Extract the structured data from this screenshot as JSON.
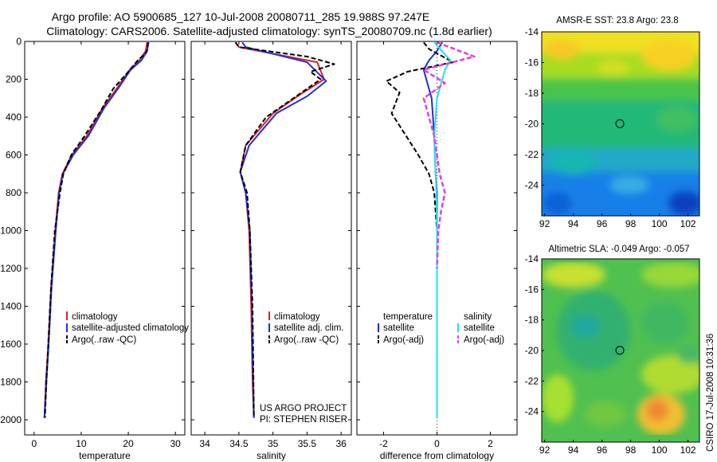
{
  "title": {
    "line1": "Argo profile: AO 5900685_127 10-Jul-2008 20080711_285 19.988S 97.247E",
    "line2": "Climatology: CARS2006. Satellite-adjusted climatology: synTS_20080709.nc (1.8d earlier)"
  },
  "credit": "CSIRO 17-Jul-2008 10:31:36",
  "project": {
    "line1": "US ARGO PROJECT",
    "line2": "PI: STEPHEN RISER"
  },
  "colors": {
    "climatology": "#e02020",
    "satellite": "#1e2ee0",
    "argo": "#000000",
    "sal_satellite": "#22e0f0",
    "sal_argo": "#e040e0"
  },
  "chart_data": [
    {
      "type": "line",
      "name": "temperature-profile",
      "xlabel": "temperature",
      "ylabel": "",
      "xlim": [
        -2,
        32
      ],
      "ylim": [
        2080,
        0
      ],
      "xticks": [
        0,
        10,
        20,
        30
      ],
      "yticks": [
        0,
        200,
        400,
        600,
        800,
        1000,
        1200,
        1400,
        1600,
        1800,
        2000
      ],
      "legend": {
        "location": "lower-right",
        "entries": [
          "climatology",
          "satellite-adjusted climatology",
          "Argo(..raw -QC)"
        ]
      },
      "series": [
        {
          "name": "climatology",
          "style": "solid",
          "x": [
            24.0,
            23.7,
            22.3,
            20.3,
            17.5,
            14.6,
            11.2,
            8.0,
            6.0,
            5.2,
            4.5,
            3.6,
            3.0,
            2.5,
            2.2
          ],
          "y": [
            5,
            50,
            100,
            150,
            250,
            350,
            500,
            600,
            700,
            800,
            1000,
            1300,
            1600,
            1800,
            1990
          ]
        },
        {
          "name": "satellite",
          "style": "solid",
          "x": [
            24.3,
            24.0,
            22.8,
            20.5,
            17.8,
            14.9,
            11.5,
            8.3,
            6.1,
            5.3,
            4.6,
            3.7,
            3.1,
            2.6,
            2.2
          ],
          "y": [
            5,
            50,
            100,
            150,
            250,
            350,
            500,
            600,
            700,
            800,
            1000,
            1300,
            1600,
            1800,
            1990
          ]
        },
        {
          "name": "Argo",
          "style": "dashed",
          "x": [
            24.2,
            23.8,
            22.0,
            20.0,
            16.8,
            14.3,
            10.7,
            7.9,
            6.2,
            5.5,
            4.4,
            3.6,
            3.0,
            2.6,
            2.3
          ],
          "y": [
            5,
            60,
            100,
            160,
            250,
            360,
            500,
            600,
            700,
            800,
            1000,
            1300,
            1600,
            1800,
            1990
          ]
        }
      ]
    },
    {
      "type": "line",
      "name": "salinity-profile",
      "xlabel": "salinity",
      "xlim": [
        33.8,
        36.15
      ],
      "ylim": [
        2080,
        0
      ],
      "xticks": [
        34,
        34.5,
        35,
        35.5,
        36
      ],
      "legend": {
        "location": "lower-right",
        "entries": [
          "climatology",
          "satellite adj. clim.",
          "Argo(..raw -QC)"
        ]
      },
      "series": [
        {
          "name": "climatology",
          "style": "solid",
          "x": [
            34.45,
            34.5,
            35.65,
            35.75,
            35.4,
            35.0,
            34.6,
            34.52,
            34.6,
            34.65,
            34.68,
            34.7,
            34.72
          ],
          "y": [
            5,
            30,
            110,
            200,
            280,
            380,
            550,
            690,
            800,
            1000,
            1400,
            1800,
            1990
          ]
        },
        {
          "name": "satellite",
          "style": "solid",
          "x": [
            34.55,
            34.6,
            35.5,
            35.78,
            35.5,
            35.05,
            34.65,
            34.52,
            34.6,
            34.66,
            34.69,
            34.71,
            34.72
          ],
          "y": [
            5,
            30,
            110,
            210,
            290,
            380,
            550,
            690,
            800,
            1000,
            1400,
            1800,
            1990
          ]
        },
        {
          "name": "Argo",
          "style": "dashed",
          "x": [
            34.45,
            34.5,
            35.5,
            35.9,
            35.55,
            35.7,
            35.3,
            34.9,
            34.6,
            34.52,
            34.62,
            34.66,
            34.7,
            34.72
          ],
          "y": [
            5,
            30,
            80,
            120,
            160,
            200,
            300,
            400,
            550,
            690,
            800,
            1000,
            1400,
            1990
          ]
        }
      ]
    },
    {
      "type": "line",
      "name": "difference-profile",
      "xlabel": "difference from climatology",
      "xlim": [
        -3,
        3
      ],
      "ylim": [
        2080,
        0
      ],
      "xticks": [
        -2,
        0,
        2
      ],
      "legend": {
        "location": "lower-center",
        "headers": [
          "temperature",
          "salinity"
        ],
        "entries": [
          "satellite",
          "Argo(-adj)",
          "satellite",
          "Argo(-adj)"
        ]
      },
      "series": [
        {
          "name": "temperature satellite",
          "style": "solid",
          "x": [
            0.2,
            0.0,
            -0.3,
            -0.5,
            -0.4,
            -0.2,
            -0.1,
            -0.05,
            0.0,
            0.0,
            0.0,
            0.0,
            0.0
          ],
          "y": [
            5,
            50,
            100,
            150,
            200,
            300,
            500,
            700,
            800,
            1000,
            1400,
            1800,
            1990
          ]
        },
        {
          "name": "temperature Argo(-adj)",
          "style": "dashed",
          "x": [
            -0.5,
            -0.3,
            0.6,
            -1.1,
            -1.9,
            -1.4,
            -1.7,
            -0.7,
            -0.3,
            -0.1,
            0.0,
            0.0,
            0.0,
            0.0
          ],
          "y": [
            5,
            40,
            110,
            160,
            210,
            270,
            380,
            600,
            700,
            800,
            1000,
            1400,
            1800,
            1990
          ]
        },
        {
          "name": "salinity satellite",
          "style": "solid",
          "x": [
            -0.1,
            0.5,
            0.3,
            0.0,
            -0.1,
            -0.05,
            -0.02,
            0.0,
            0.0,
            0.0,
            0.0
          ],
          "y": [
            5,
            100,
            150,
            300,
            500,
            700,
            800,
            1000,
            1400,
            1800,
            1990
          ]
        },
        {
          "name": "salinity Argo(-adj)",
          "style": "dashed",
          "x": [
            0.0,
            1.4,
            -0.5,
            0.3,
            -0.5,
            -0.1,
            0.1,
            0.3,
            0.15,
            0.05,
            0.0
          ],
          "y": [
            5,
            80,
            150,
            220,
            300,
            500,
            700,
            800,
            900,
            1000,
            1200
          ]
        }
      ]
    },
    {
      "type": "heatmap",
      "name": "amsr-e-sst-map",
      "title": "AMSR-E SST: 23.8 Argo: 23.8",
      "xlim": [
        91.8,
        102.8
      ],
      "ylim": [
        -26,
        -14
      ],
      "xticks": [
        92,
        94,
        96,
        98,
        100,
        102
      ],
      "yticks": [
        -14,
        -16,
        -18,
        -20,
        -22,
        -24
      ],
      "marker": {
        "lon": 97.247,
        "lat": -19.988
      }
    },
    {
      "type": "heatmap",
      "name": "altimetric-sla-map",
      "title": "Altimetric SLA: -0.049 Argo: -0.057",
      "xlim": [
        91.8,
        102.8
      ],
      "ylim": [
        -26,
        -14
      ],
      "xticks": [
        92,
        94,
        96,
        98,
        100,
        102
      ],
      "yticks": [
        -14,
        -16,
        -18,
        -20,
        -22,
        -24
      ],
      "marker": {
        "lon": 97.247,
        "lat": -19.988
      }
    }
  ]
}
